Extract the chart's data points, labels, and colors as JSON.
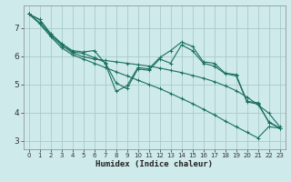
{
  "title": "",
  "xlabel": "Humidex (Indice chaleur)",
  "bg_color": "#ceeaea",
  "grid_color": "#aacaca",
  "line_color": "#1a7060",
  "xlim": [
    -0.5,
    23.5
  ],
  "ylim": [
    2.7,
    7.8
  ],
  "xticks": [
    0,
    1,
    2,
    3,
    4,
    5,
    6,
    7,
    8,
    9,
    10,
    11,
    12,
    13,
    14,
    15,
    16,
    17,
    18,
    19,
    20,
    21,
    22,
    23
  ],
  "yticks": [
    3,
    4,
    5,
    6,
    7
  ],
  "lines": [
    {
      "x": [
        0,
        1,
        2,
        3,
        4,
        5,
        6,
        7,
        8,
        9,
        10,
        11,
        12,
        13,
        14,
        15,
        16,
        17,
        18,
        19,
        20,
        21,
        22,
        23
      ],
      "y": [
        7.5,
        7.3,
        6.8,
        6.45,
        6.2,
        6.15,
        6.2,
        5.75,
        4.75,
        4.95,
        5.6,
        5.55,
        5.95,
        6.2,
        6.5,
        6.35,
        5.8,
        5.75,
        5.4,
        5.35,
        4.4,
        4.35,
        3.65,
        3.45
      ]
    },
    {
      "x": [
        0,
        1,
        2,
        3,
        4,
        5,
        6,
        7,
        8,
        9,
        10,
        11,
        12,
        13,
        14,
        15,
        16,
        17,
        18,
        19,
        20,
        21,
        22,
        23
      ],
      "y": [
        7.5,
        7.3,
        6.8,
        6.45,
        6.15,
        6.1,
        5.95,
        5.78,
        5.05,
        4.85,
        5.55,
        5.5,
        5.9,
        5.75,
        6.4,
        6.2,
        5.75,
        5.65,
        5.38,
        5.3,
        4.38,
        4.3,
        3.68,
        3.45
      ]
    },
    {
      "x": [
        0,
        1,
        2,
        3,
        4,
        5,
        6,
        7,
        8,
        9,
        10,
        11,
        12,
        13,
        14,
        15,
        16,
        17,
        18,
        19,
        20,
        21,
        22,
        23
      ],
      "y": [
        7.5,
        7.2,
        6.75,
        6.38,
        6.12,
        5.98,
        5.9,
        5.85,
        5.8,
        5.75,
        5.7,
        5.65,
        5.58,
        5.5,
        5.42,
        5.32,
        5.22,
        5.1,
        4.95,
        4.78,
        4.55,
        4.28,
        3.98,
        3.5
      ]
    },
    {
      "x": [
        0,
        1,
        2,
        3,
        4,
        5,
        6,
        7,
        8,
        9,
        10,
        11,
        12,
        13,
        14,
        15,
        16,
        17,
        18,
        19,
        20,
        21,
        22,
        23
      ],
      "y": [
        7.5,
        7.15,
        6.7,
        6.3,
        6.05,
        5.9,
        5.75,
        5.6,
        5.45,
        5.3,
        5.15,
        5.0,
        4.85,
        4.68,
        4.5,
        4.32,
        4.12,
        3.92,
        3.7,
        3.5,
        3.3,
        3.1,
        3.5,
        3.45
      ]
    }
  ]
}
